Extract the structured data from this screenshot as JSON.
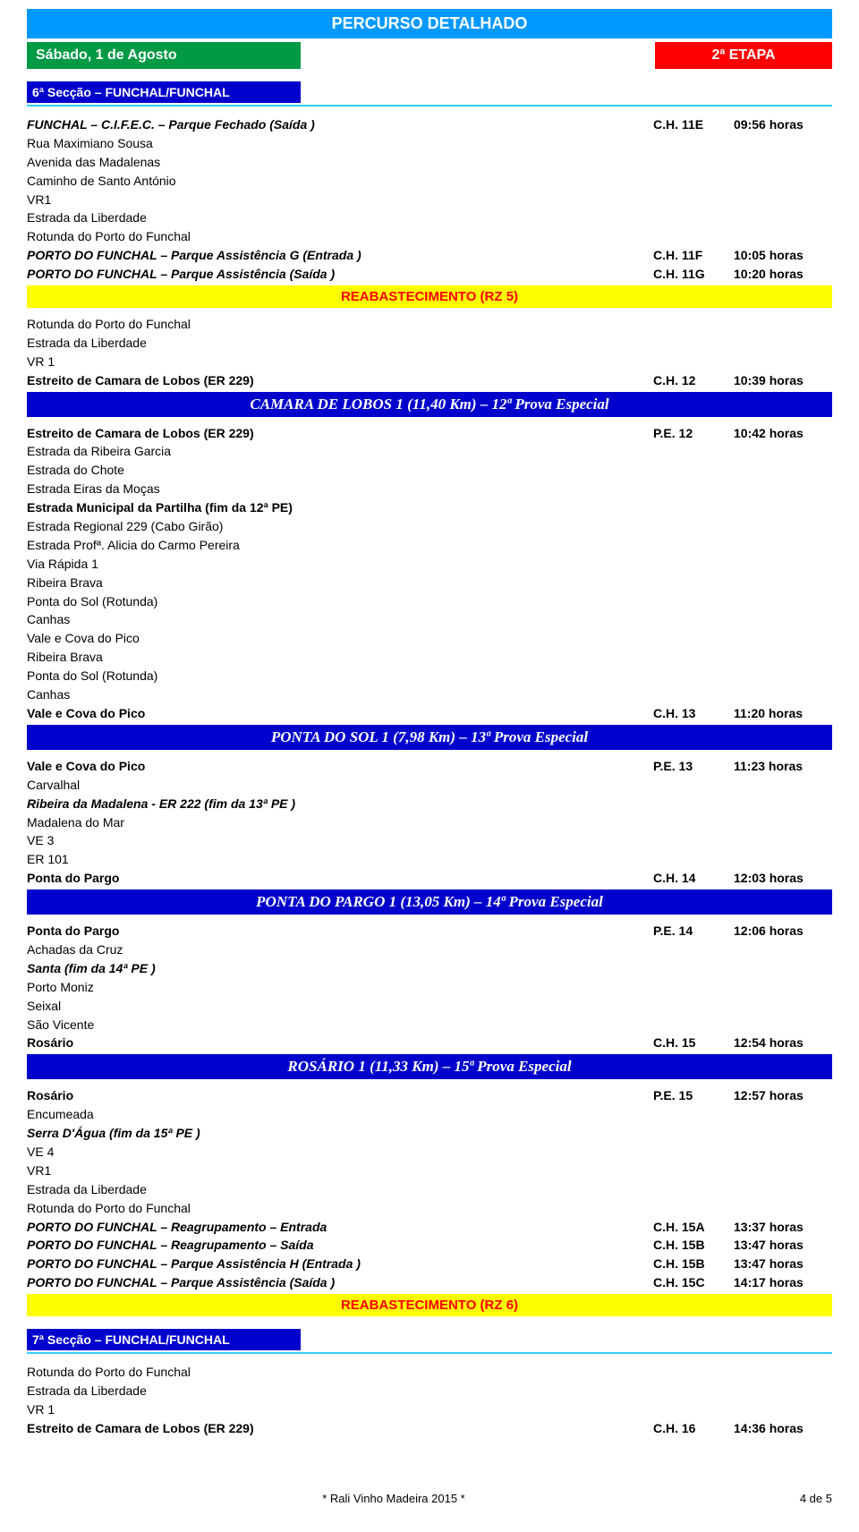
{
  "colors": {
    "title_bg": "#0099ff",
    "green_bg": "#009944",
    "red_bg": "#ff0000",
    "blue_bg": "#0000cc",
    "yellow_bg": "#ffff00",
    "yellow_text": "#ff0000",
    "cyan_rule": "#33ccff"
  },
  "header": {
    "title": "PERCURSO DETALHADO",
    "day": "Sábado, 1 de Agosto",
    "stage": "2ª ETAPA"
  },
  "section6": {
    "title": "6ª Secção – FUNCHAL/FUNCHAL",
    "rows": [
      {
        "c1": "FUNCHAL – C.I.F.E.C. – Parque Fechado (Saída )",
        "c2": "C.H. 11E",
        "c3": "09:56 horas",
        "bold": true,
        "ital": true
      },
      {
        "c1": "Rua Maximiano Sousa"
      },
      {
        "c1": "Avenida das Madalenas"
      },
      {
        "c1": "Caminho de Santo António"
      },
      {
        "c1": "VR1"
      },
      {
        "c1": "Estrada da Liberdade"
      },
      {
        "c1": "Rotunda do Porto do Funchal"
      },
      {
        "c1": "PORTO DO FUNCHAL – Parque Assistência G (Entrada )",
        "c2": "C.H. 11F",
        "c3": "10:05 horas",
        "bold": true,
        "ital": true
      },
      {
        "c1": "PORTO DO FUNCHAL – Parque Assistência (Saída )",
        "c2": "C.H. 11G",
        "c3": "10:20 horas",
        "bold": true,
        "ital": true
      }
    ],
    "rz5": "REABASTECIMENTO (RZ 5)",
    "afterRz5": [
      {
        "c1": "Rotunda do Porto do Funchal"
      },
      {
        "c1": "Estrada da Liberdade"
      },
      {
        "c1": "VR 1"
      },
      {
        "c1": "Estreito de Camara de Lobos (ER 229)",
        "c2": "C.H. 12",
        "c3": "10:39 horas",
        "bold": true
      }
    ],
    "stage12": "CAMARA DE LOBOS 1 (11,40 Km) – 12ª Prova Especial",
    "afterStage12": [
      {
        "c1": "Estreito de Camara de Lobos (ER 229)",
        "c2": "P.E. 12",
        "c3": "10:42 horas",
        "bold": true
      },
      {
        "c1": "Estrada da Ribeira Garcia"
      },
      {
        "c1": "Estrada do Chote"
      },
      {
        "c1": "Estrada Eiras da Moças"
      },
      {
        "c1": "Estrada Municipal da Partilha (fim da 12ª PE)",
        "bold": true
      },
      {
        "c1": "Estrada Regional 229 (Cabo Girão)"
      },
      {
        "c1": "Estrada Profª. Alicia do Carmo Pereira"
      },
      {
        "c1": "Via Rápida 1"
      },
      {
        "c1": "Ribeira Brava"
      },
      {
        "c1": "Ponta do Sol (Rotunda)"
      },
      {
        "c1": "Canhas"
      },
      {
        "c1": "Vale e Cova do Pico"
      },
      {
        "c1": "Ribeira Brava"
      },
      {
        "c1": "Ponta do Sol (Rotunda)"
      },
      {
        "c1": "Canhas"
      },
      {
        "c1": "Vale e Cova do Pico",
        "c2": "C.H. 13",
        "c3": "11:20 horas",
        "bold": true
      }
    ],
    "stage13": "PONTA DO SOL 1 (7,98 Km) – 13ª Prova Especial",
    "afterStage13": [
      {
        "c1": "Vale e Cova do Pico",
        "c2": "P.E. 13",
        "c3": "11:23 horas",
        "bold": true
      },
      {
        "c1": "Carvalhal"
      },
      {
        "c1": "Ribeira da Madalena  - ER 222 (fim da 13ª PE )",
        "bold": true,
        "ital": true
      },
      {
        "c1": "Madalena do Mar"
      },
      {
        "c1": "VE 3"
      },
      {
        "c1": "ER 101"
      },
      {
        "c1": "Ponta do Pargo",
        "c2": "C.H. 14",
        "c3": "12:03 horas",
        "bold": true
      }
    ],
    "stage14": "PONTA DO PARGO 1 (13,05 Km) – 14ª Prova Especial",
    "afterStage14": [
      {
        "c1": "Ponta do Pargo",
        "c2": "P.E. 14",
        "c3": "12:06 horas",
        "bold": true
      },
      {
        "c1": "Achadas da Cruz"
      },
      {
        "c1": "Santa (fim da 14ª PE )",
        "bold": true,
        "ital": true
      },
      {
        "c1": "Porto Moniz"
      },
      {
        "c1": "Seixal"
      },
      {
        "c1": "São Vicente"
      },
      {
        "c1": "Rosário",
        "c2": "C.H. 15",
        "c3": "12:54 horas",
        "bold": true
      }
    ],
    "stage15": "ROSÁRIO 1 (11,33 Km) – 15ª Prova Especial",
    "afterStage15": [
      {
        "c1": "Rosário",
        "c2": "P.E. 15",
        "c3": "12:57 horas",
        "bold": true
      },
      {
        "c1": "Encumeada"
      },
      {
        "c1": "Serra D'Água (fim da 15ª PE )",
        "bold": true,
        "ital": true
      },
      {
        "c1": "VE 4"
      },
      {
        "c1": "VR1"
      },
      {
        "c1": "Estrada da Liberdade"
      },
      {
        "c1": "Rotunda do Porto do Funchal"
      },
      {
        "c1": "PORTO DO FUNCHAL – Reagrupamento – Entrada",
        "c2": "C.H. 15A",
        "c3": "13:37 horas",
        "bold": true,
        "ital": true
      },
      {
        "c1": "PORTO DO FUNCHAL – Reagrupamento – Saída",
        "c2": "C.H. 15B",
        "c3": "13:47 horas",
        "bold": true,
        "ital": true
      },
      {
        "c1": "PORTO DO FUNCHAL – Parque Assistência H (Entrada )",
        "c2": "C.H. 15B",
        "c3": "13:47 horas",
        "bold": true,
        "ital": true
      },
      {
        "c1": "PORTO DO FUNCHAL – Parque Assistência (Saída )",
        "c2": "C.H. 15C",
        "c3": "14:17 horas",
        "bold": true,
        "ital": true
      }
    ],
    "rz6": "REABASTECIMENTO (RZ 6)"
  },
  "section7": {
    "title": "7ª Secção – FUNCHAL/FUNCHAL",
    "rows": [
      {
        "c1": "Rotunda do Porto do Funchal"
      },
      {
        "c1": "Estrada da Liberdade"
      },
      {
        "c1": "VR 1"
      },
      {
        "c1": "Estreito de Camara de Lobos (ER 229)",
        "c2": "C.H. 16",
        "c3": "14:36 horas",
        "bold": true
      }
    ]
  },
  "footer": {
    "text": "* Rali Vinho Madeira 2015 *",
    "page": "4 de 5"
  }
}
